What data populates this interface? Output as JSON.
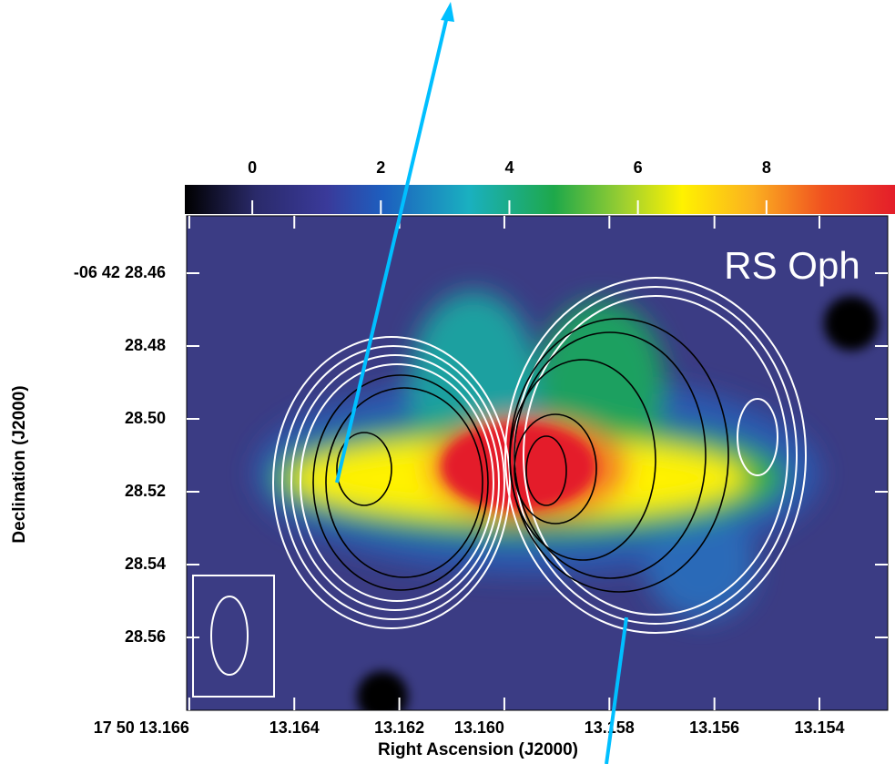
{
  "chart_data": {
    "type": "heatmap",
    "annotation": "RS Oph",
    "x_label": "Right Ascension (J2000)",
    "y_label": "Declination (J2000)",
    "xlim": [
      13.16605,
      13.1527
    ],
    "xticks": [
      {
        "value": 13.166,
        "label": "17 50 13.166"
      },
      13.164,
      13.162,
      {
        "value": 13.16,
        "label": "13.160"
      },
      13.158,
      13.156,
      13.154
    ],
    "ylim": [
      28.58,
      28.44425
    ],
    "yticks": [
      {
        "value": 28.46,
        "label": "-06 42 28.46"
      },
      28.48,
      {
        "value": 28.5,
        "label": "28.50"
      },
      28.52,
      28.54,
      28.56
    ],
    "clim": [
      -1.05,
      10
    ],
    "cticks": [
      0,
      2,
      4,
      6,
      8
    ]
  }
}
